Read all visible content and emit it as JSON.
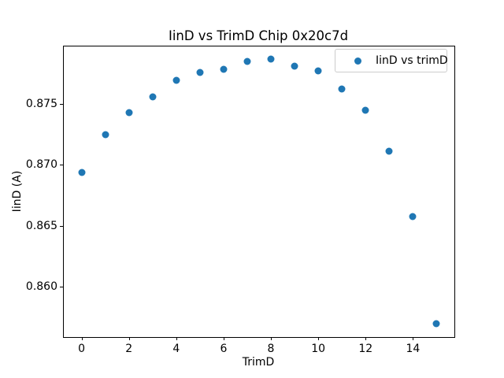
{
  "figure": {
    "background": "#ffffff",
    "axes_edge_color": "#000000"
  },
  "chart_data": {
    "type": "scatter",
    "title": "IinD vs TrimD Chip 0x20c7d",
    "xlabel": "TrimD",
    "ylabel": "IinD (A)",
    "legend_label": "IinD vs trimD",
    "legend_position": "upper right",
    "marker_color": "#1f77b4",
    "grid": false,
    "x": [
      0,
      1,
      2,
      3,
      4,
      5,
      6,
      7,
      8,
      9,
      10,
      11,
      12,
      13,
      14,
      15
    ],
    "y": [
      0.8694,
      0.8725,
      0.8743,
      0.8756,
      0.8769,
      0.8776,
      0.8778,
      0.8785,
      0.8787,
      0.8781,
      0.8777,
      0.8762,
      0.8745,
      0.8711,
      0.8658,
      0.857
    ],
    "xlim": [
      -0.75,
      15.75
    ],
    "ylim": [
      0.8559,
      0.8797
    ],
    "xticks": [
      0,
      2,
      4,
      6,
      8,
      10,
      12,
      14
    ],
    "xtick_labels": [
      "0",
      "2",
      "4",
      "6",
      "8",
      "10",
      "12",
      "14"
    ],
    "yticks": [
      0.86,
      0.865,
      0.87,
      0.875
    ],
    "ytick_labels": [
      "0.860",
      "0.865",
      "0.870",
      "0.875"
    ]
  }
}
